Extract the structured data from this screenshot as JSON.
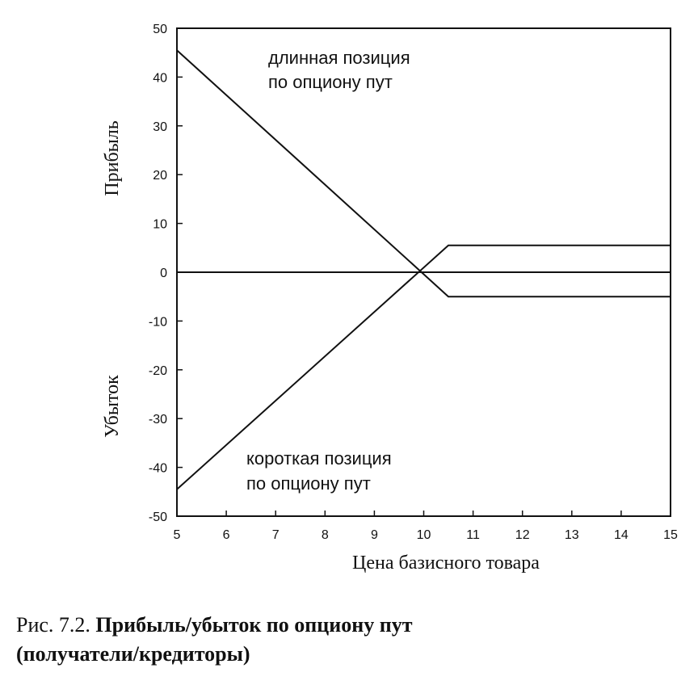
{
  "chart_data": {
    "type": "line",
    "xlabel": "Цена базисного товара",
    "ylabel_top": "Прибыль",
    "ylabel_bottom": "Убыток",
    "xlim": [
      5,
      15
    ],
    "ylim": [
      -50,
      50
    ],
    "xticks": [
      5,
      6,
      7,
      8,
      9,
      10,
      11,
      12,
      13,
      14,
      15
    ],
    "yticks": [
      50,
      40,
      30,
      20,
      10,
      0,
      -10,
      -20,
      -30,
      -40,
      -50
    ],
    "grid": false,
    "series": [
      {
        "name": "длинная позиция по опциону пут",
        "points": [
          [
            5,
            45.5
          ],
          [
            10.5,
            -5
          ],
          [
            15,
            -5
          ]
        ]
      },
      {
        "name": "короткая позиция по опциону пут",
        "points": [
          [
            5,
            -44.5
          ],
          [
            10.5,
            5.5
          ],
          [
            15,
            5.5
          ]
        ]
      },
      {
        "name": "",
        "points": [
          [
            5,
            0
          ],
          [
            15,
            0
          ]
        ]
      }
    ],
    "annotations": [
      {
        "lines": [
          "длинная позиция",
          "по опциону пут"
        ]
      },
      {
        "lines": [
          "короткая позиция",
          "по опциону пут"
        ]
      }
    ]
  },
  "caption": {
    "prefix": "Рис. 7.2. ",
    "title_line1": "Прибыль/убыток по опциону пут",
    "title_line2": "(получатели/кредиторы)"
  }
}
